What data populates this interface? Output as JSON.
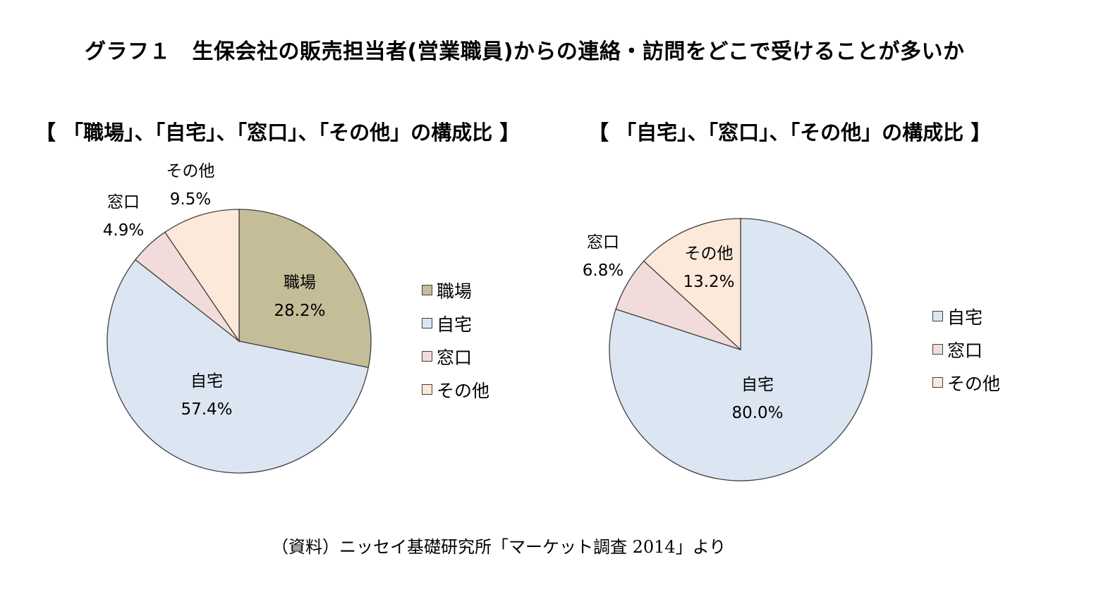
{
  "title": "グラフ１　生保会社の販売担当者(営業職員)からの連絡・訪問をどこで受けることが多いか",
  "source": "（資料）ニッセイ基礎研究所「マーケット調査 2014」より",
  "chart_data": [
    {
      "type": "pie",
      "title": "【 「職場」、「自宅」、「窓口」、「その他」の構成比 】",
      "categories": [
        "職場",
        "自宅",
        "窓口",
        "その他"
      ],
      "values": [
        28.2,
        57.4,
        4.9,
        9.5
      ],
      "value_labels": [
        "28.2%",
        "57.4%",
        "4.9%",
        "9.5%"
      ],
      "colors": [
        "#c4bd97",
        "#dce6f2",
        "#f2dcdb",
        "#fde9d9"
      ],
      "legend": "right",
      "start": "12 o'clock",
      "direction": "clockwise"
    },
    {
      "type": "pie",
      "title": "【 「自宅」、「窓口」、「その他」の構成比 】",
      "categories": [
        "自宅",
        "窓口",
        "その他"
      ],
      "values": [
        80.0,
        6.8,
        13.2
      ],
      "value_labels": [
        "80.0%",
        "6.8%",
        "13.2%"
      ],
      "colors": [
        "#dce6f2",
        "#f2dcdb",
        "#fde9d9"
      ],
      "legend": "right",
      "start": "12 o'clock",
      "direction": "clockwise"
    }
  ]
}
